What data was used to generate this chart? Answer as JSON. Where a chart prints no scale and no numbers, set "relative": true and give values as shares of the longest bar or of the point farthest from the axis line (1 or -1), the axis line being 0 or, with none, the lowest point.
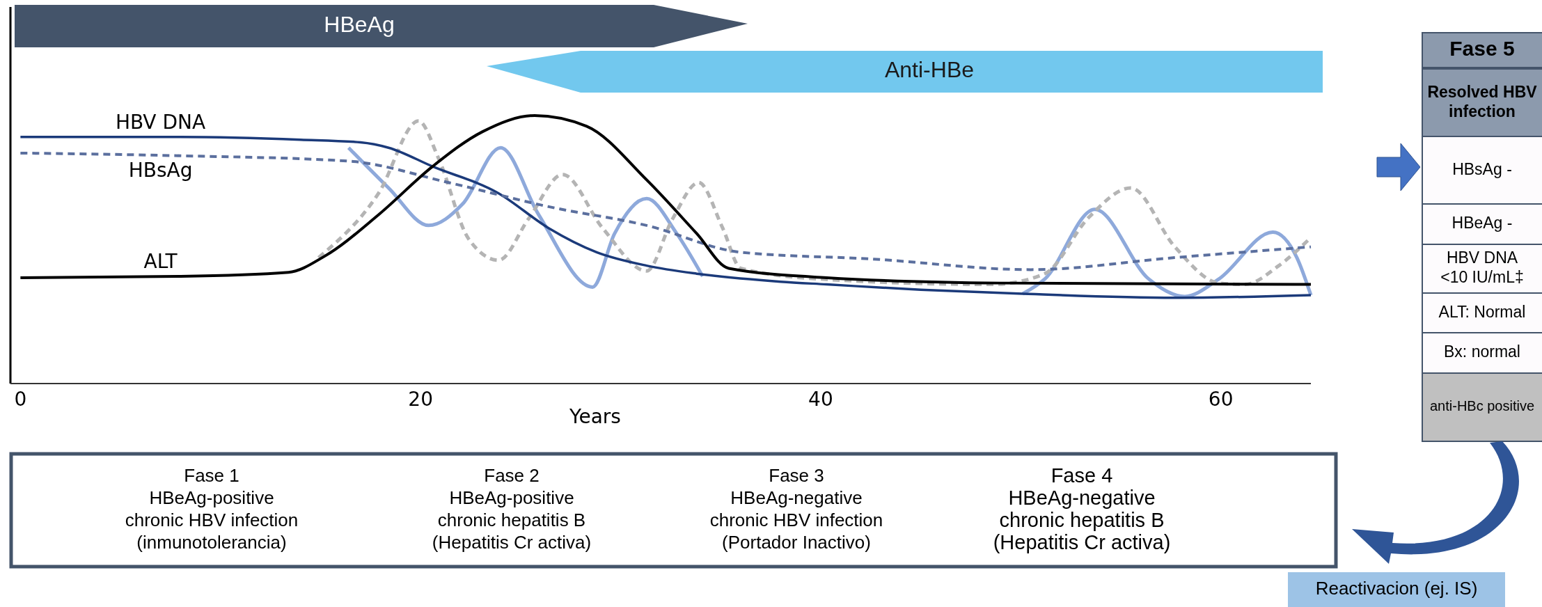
{
  "chart_data": {
    "type": "line",
    "relative": true,
    "xlabel": "Years",
    "xlim": [
      -0.5,
      64.5
    ],
    "xticks": [
      0,
      20,
      40,
      60
    ],
    "tick_labels": "x",
    "grid": false,
    "legend": false,
    "marker": "none",
    "series": [
      {
        "name": "HBV DNA",
        "color": "#1b3a7a",
        "line_style": "solid",
        "x": [
          0,
          8,
          14,
          17,
          18.4,
          20.6,
          23.9,
          26.4,
          28.8,
          31.3,
          33.8,
          38,
          40.3,
          45,
          50.1,
          57.7,
          64.5
        ],
        "values": [
          0.92,
          0.92,
          0.91,
          0.9,
          0.88,
          0.81,
          0.71,
          0.58,
          0.49,
          0.44,
          0.41,
          0.38,
          0.37,
          0.35,
          0.335,
          0.32,
          0.33
        ]
      },
      {
        "name": "HBsAg",
        "color": "#5b6f9e",
        "line_style": "dashed",
        "x": [
          0,
          8,
          16.4,
          21.4,
          26.4,
          31.3,
          36,
          42.5,
          50.5,
          57.7,
          64.5
        ],
        "values": [
          0.86,
          0.85,
          0.83,
          0.75,
          0.66,
          0.59,
          0.49,
          0.465,
          0.425,
          0.47,
          0.51
        ]
      },
      {
        "name": "ALT",
        "color": "#000000",
        "line_style": "solid",
        "x": [
          0,
          8,
          13.4,
          15.2,
          17.9,
          20.6,
          23.1,
          25.7,
          28.3,
          31.3,
          33.8,
          35.4,
          40.3,
          49,
          64.5
        ],
        "values": [
          0.395,
          0.4,
          0.415,
          0.475,
          0.63,
          0.81,
          0.94,
          1,
          0.96,
          0.76,
          0.56,
          0.43,
          0.395,
          0.375,
          0.37
        ]
      },
      {
        "color": "#8ea9db",
        "line_style": "solid",
        "x": [
          16.4,
          18.4,
          20.4,
          22.1,
          24,
          25.9,
          28.6,
          29.7,
          31.3,
          32.8,
          34.1,
          38,
          45,
          50.1,
          51.2,
          53.7,
          56.4,
          58.2,
          59.9,
          62.6,
          63.8,
          64.5
        ],
        "values": [
          0.88,
          0.73,
          0.59,
          0.67,
          0.88,
          0.63,
          0.36,
          0.56,
          0.69,
          0.56,
          0.4,
          null,
          null,
          0.335,
          0.39,
          0.65,
          0.39,
          0.325,
          0.39,
          0.565,
          0.47,
          0.33
        ]
      },
      {
        "color": "#b4b4b4",
        "line_style": "dashed",
        "x": [
          14.9,
          17.9,
          19.9,
          20.9,
          22.4,
          23.9,
          25.4,
          27.1,
          29.1,
          31.3,
          32.6,
          33.9,
          35.1,
          36,
          40,
          48.6,
          51.2,
          53.4,
          55.5,
          57.7,
          59.9,
          61.2,
          62.9,
          64.5
        ],
        "values": [
          0.47,
          0.71,
          0.98,
          0.84,
          0.54,
          0.46,
          0.615,
          0.78,
          0.58,
          0.42,
          0.615,
          0.75,
          0.58,
          0.43,
          0.39,
          0.37,
          0.41,
          0.62,
          0.73,
          0.51,
          0.375,
          0.37,
          0.44,
          0.545
        ]
      }
    ],
    "annotations": [
      "HBeAg",
      "Anti-HBe",
      "Fase 1\nHBeAg-positive\nchronic HBV infection\n(inmunotolerancia)",
      "Fase 2\nHBeAg-positive\nchronic hepatitis B\n(Hepatitis Cr activa)",
      "Fase 3\nHBeAg-negative\nchronic HBV infection\n(Portador Inactivo)",
      "Fase 4\nHBeAg-negative\nchronic hepatitis B\n(Hepatitis Cr activa)",
      "Fase 5",
      "Resolved HBV\ninfection",
      "HBsAg  -",
      "HBeAg -",
      "HBV DNA\n<10 IU/mL‡",
      "ALT: Normal",
      "Bx: normal",
      "anti-HBc positive",
      "Reactivacion (ej. IS)"
    ]
  }
}
